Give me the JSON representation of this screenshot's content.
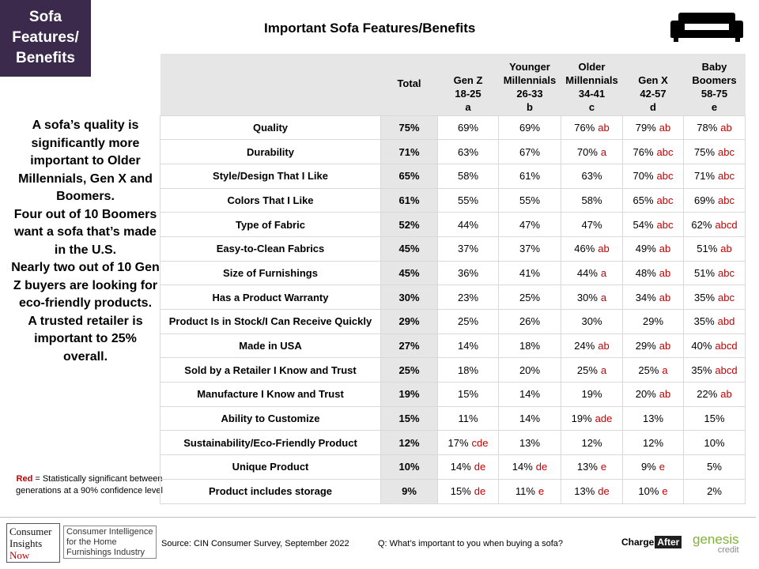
{
  "tag": {
    "lines": [
      "Sofa",
      "Features/",
      "Benefits"
    ]
  },
  "left_text": [
    "A sofa’s quality is significantly more important to Older Millennials, Gen X and Boomers.",
    "Four out of 10 Boomers want a sofa that’s made in the U.S.",
    "Nearly two out of 10 Gen Z buyers are looking for eco-friendly products.",
    "A trusted retailer is important to 25% overall."
  ],
  "legend_note": {
    "red_word": "Red",
    "text": " = Statistically significant between  generations at a 90% confidence level"
  },
  "footer": {
    "logo_lines": [
      "Consumer",
      "Insights",
      "Now"
    ],
    "logo_desc": "Consumer Intelligence for the Home Furnishings Industry",
    "source": "Source:  CIN Consumer Survey, September  2022",
    "question": "Q: What’s important to you when buying a sofa?",
    "chargeafter": {
      "charge": "Charge",
      "after": "After"
    },
    "genesis": {
      "name": "genesis",
      "credit": "credit"
    }
  },
  "colors": {
    "tag_bg": "#3c2a4d",
    "significance": "#c00000",
    "header_bg": "#e6e6e6"
  },
  "icons": {
    "sofa": "sofa-icon"
  },
  "chart_data": {
    "type": "table",
    "title": "Important  Sofa Features/Benefits",
    "columns": [
      {
        "lines": [
          "Total"
        ]
      },
      {
        "lines": [
          "Gen Z",
          "18-25",
          "a"
        ]
      },
      {
        "lines": [
          "Younger",
          "Millennials",
          "26-33",
          "b"
        ]
      },
      {
        "lines": [
          "Older",
          "Millennials",
          "34-41",
          "c"
        ]
      },
      {
        "lines": [
          "Gen X",
          "42-57",
          "d"
        ]
      },
      {
        "lines": [
          "Baby",
          "Boomers",
          "58-75",
          "e"
        ]
      }
    ],
    "rows": [
      {
        "label": "Quality",
        "total": "75%",
        "cells": [
          [
            "69%",
            ""
          ],
          [
            "69%",
            ""
          ],
          [
            "76%",
            "ab"
          ],
          [
            "79%",
            "ab"
          ],
          [
            "78%",
            "ab"
          ]
        ]
      },
      {
        "label": "Durability",
        "total": "71%",
        "cells": [
          [
            "63%",
            ""
          ],
          [
            "67%",
            ""
          ],
          [
            "70%",
            "a"
          ],
          [
            "76%",
            "abc"
          ],
          [
            "75%",
            "abc"
          ]
        ]
      },
      {
        "label": "Style/Design That I Like",
        "total": "65%",
        "cells": [
          [
            "58%",
            ""
          ],
          [
            "61%",
            ""
          ],
          [
            "63%",
            ""
          ],
          [
            "70%",
            "abc"
          ],
          [
            "71%",
            "abc"
          ]
        ]
      },
      {
        "label": "Colors That I Like",
        "total": "61%",
        "cells": [
          [
            "55%",
            ""
          ],
          [
            "55%",
            ""
          ],
          [
            "58%",
            ""
          ],
          [
            "65%",
            "abc"
          ],
          [
            "69%",
            "abc"
          ]
        ]
      },
      {
        "label": "Type of Fabric",
        "total": "52%",
        "dashed_top": true,
        "cells": [
          [
            "44%",
            ""
          ],
          [
            "47%",
            ""
          ],
          [
            "47%",
            ""
          ],
          [
            "54%",
            "abc"
          ],
          [
            "62%",
            "abcd"
          ]
        ]
      },
      {
        "label": "Easy-to-Clean Fabrics",
        "total": "45%",
        "cells": [
          [
            "37%",
            ""
          ],
          [
            "37%",
            ""
          ],
          [
            "46%",
            "ab"
          ],
          [
            "49%",
            "ab"
          ],
          [
            "51%",
            "ab"
          ]
        ]
      },
      {
        "label": "Size of Furnishings",
        "total": "45%",
        "cells": [
          [
            "36%",
            ""
          ],
          [
            "41%",
            ""
          ],
          [
            "44%",
            "a"
          ],
          [
            "48%",
            "ab"
          ],
          [
            "51%",
            "abc"
          ]
        ]
      },
      {
        "label": "Has a Product Warranty",
        "total": "30%",
        "cells": [
          [
            "23%",
            ""
          ],
          [
            "25%",
            ""
          ],
          [
            "30%",
            "a"
          ],
          [
            "34%",
            "ab"
          ],
          [
            "35%",
            "abc"
          ]
        ]
      },
      {
        "label": "Product Is in Stock/I Can Receive Quickly",
        "total": "29%",
        "dashed_top": true,
        "cells": [
          [
            "25%",
            ""
          ],
          [
            "26%",
            ""
          ],
          [
            "30%",
            ""
          ],
          [
            "29%",
            ""
          ],
          [
            "35%",
            "abd"
          ]
        ]
      },
      {
        "label": "Made in USA",
        "total": "27%",
        "cells": [
          [
            "14%",
            ""
          ],
          [
            "18%",
            ""
          ],
          [
            "24%",
            "ab"
          ],
          [
            "29%",
            "ab"
          ],
          [
            "40%",
            "abcd"
          ]
        ]
      },
      {
        "label": "Sold by a Retailer I Know and Trust",
        "total": "25%",
        "cells": [
          [
            "18%",
            ""
          ],
          [
            "20%",
            ""
          ],
          [
            "25%",
            "a"
          ],
          [
            "25%",
            "a"
          ],
          [
            "35%",
            "abcd"
          ]
        ]
      },
      {
        "label": "Manufacture I Know and Trust",
        "total": "19%",
        "dashed_top": true,
        "cells": [
          [
            "15%",
            ""
          ],
          [
            "14%",
            ""
          ],
          [
            "19%",
            ""
          ],
          [
            "20%",
            "ab"
          ],
          [
            "22%",
            "ab"
          ]
        ]
      },
      {
        "label": "Ability to Customize",
        "total": "15%",
        "cells": [
          [
            "11%",
            ""
          ],
          [
            "14%",
            ""
          ],
          [
            "19%",
            "ade"
          ],
          [
            "13%",
            ""
          ],
          [
            "15%",
            ""
          ]
        ]
      },
      {
        "label": "Sustainability/Eco-Friendly Product",
        "total": "12%",
        "cells": [
          [
            "17%",
            "cde"
          ],
          [
            "13%",
            ""
          ],
          [
            "12%",
            ""
          ],
          [
            "12%",
            ""
          ],
          [
            "10%",
            ""
          ]
        ]
      },
      {
        "label": "Unique Product",
        "total": "10%",
        "cells": [
          [
            "14%",
            "de"
          ],
          [
            "14%",
            "de"
          ],
          [
            "13%",
            "e"
          ],
          [
            "9%",
            "e"
          ],
          [
            "5%",
            ""
          ]
        ]
      },
      {
        "label": "Product includes storage",
        "total": "9%",
        "cells": [
          [
            "15%",
            "de"
          ],
          [
            "11%",
            "e"
          ],
          [
            "13%",
            "de"
          ],
          [
            "10%",
            "e"
          ],
          [
            "2%",
            ""
          ]
        ]
      }
    ]
  }
}
